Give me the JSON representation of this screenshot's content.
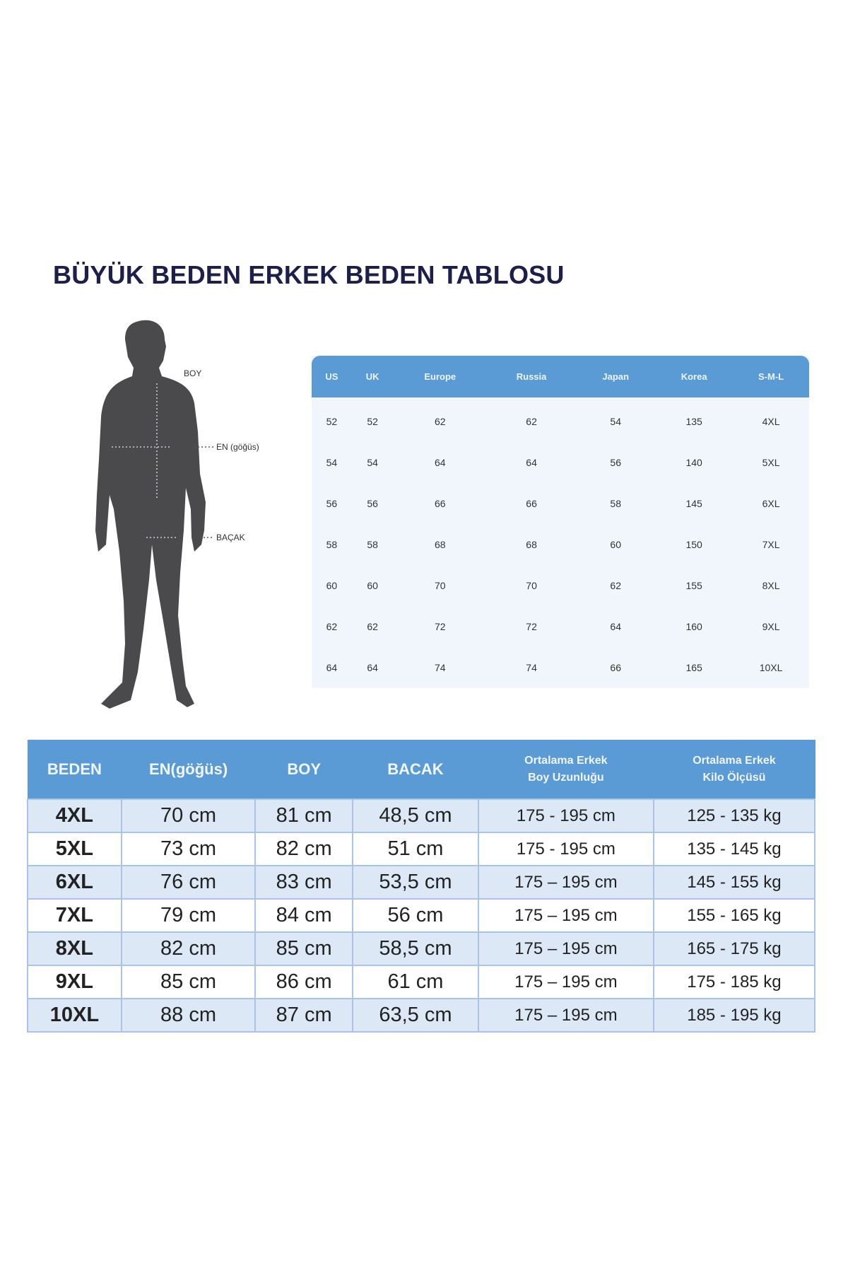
{
  "title": "BÜYÜK BEDEN ERKEK BEDEN TABLOSU",
  "figure_labels": {
    "boy": "BOY",
    "en": "EN (göğüs)",
    "bacak": "BAÇAK"
  },
  "conversion_table": {
    "headers": [
      "US",
      "UK",
      "Europe",
      "Russia",
      "Japan",
      "Korea",
      "S-M-L"
    ],
    "rows": [
      [
        "52",
        "52",
        "62",
        "62",
        "54",
        "135",
        "4XL"
      ],
      [
        "54",
        "54",
        "64",
        "64",
        "56",
        "140",
        "5XL"
      ],
      [
        "56",
        "56",
        "66",
        "66",
        "58",
        "145",
        "6XL"
      ],
      [
        "58",
        "58",
        "68",
        "68",
        "60",
        "150",
        "7XL"
      ],
      [
        "60",
        "60",
        "70",
        "70",
        "62",
        "155",
        "8XL"
      ],
      [
        "62",
        "62",
        "72",
        "72",
        "64",
        "160",
        "9XL"
      ],
      [
        "64",
        "64",
        "74",
        "74",
        "66",
        "165",
        "10XL"
      ]
    ]
  },
  "measure_table": {
    "headers": [
      "BEDEN",
      "EN(göğüs)",
      "BOY",
      "BACAK",
      [
        "Ortalama Erkek",
        "Boy Uzunluğu"
      ],
      [
        "Ortalama Erkek",
        "Kilo Ölçüsü"
      ]
    ],
    "rows": [
      [
        "4XL",
        "70 cm",
        "81 cm",
        "48,5 cm",
        "175 - 195 cm",
        "125 - 135 kg"
      ],
      [
        "5XL",
        "73 cm",
        "82 cm",
        "51 cm",
        "175 - 195 cm",
        "135 - 145 kg"
      ],
      [
        "6XL",
        "76 cm",
        "83 cm",
        "53,5 cm",
        "175 – 195 cm",
        "145 - 155 kg"
      ],
      [
        "7XL",
        "79 cm",
        "84 cm",
        "56 cm",
        "175 – 195 cm",
        "155 - 165 kg"
      ],
      [
        "8XL",
        "82 cm",
        "85 cm",
        "58,5 cm",
        "175 – 195 cm",
        "165 - 175 kg"
      ],
      [
        "9XL",
        "85 cm",
        "86 cm",
        "61 cm",
        "175 – 195 cm",
        "175 - 185 kg"
      ],
      [
        "10XL",
        "88 cm",
        "87 cm",
        "63,5 cm",
        "175 – 195 cm",
        "185 - 195 kg"
      ]
    ]
  },
  "colors": {
    "header_blue": "#5b9bd5",
    "title_navy": "#1b1f4a",
    "silhouette": "#4a4a4d",
    "row_alt": "#dce8f6"
  }
}
